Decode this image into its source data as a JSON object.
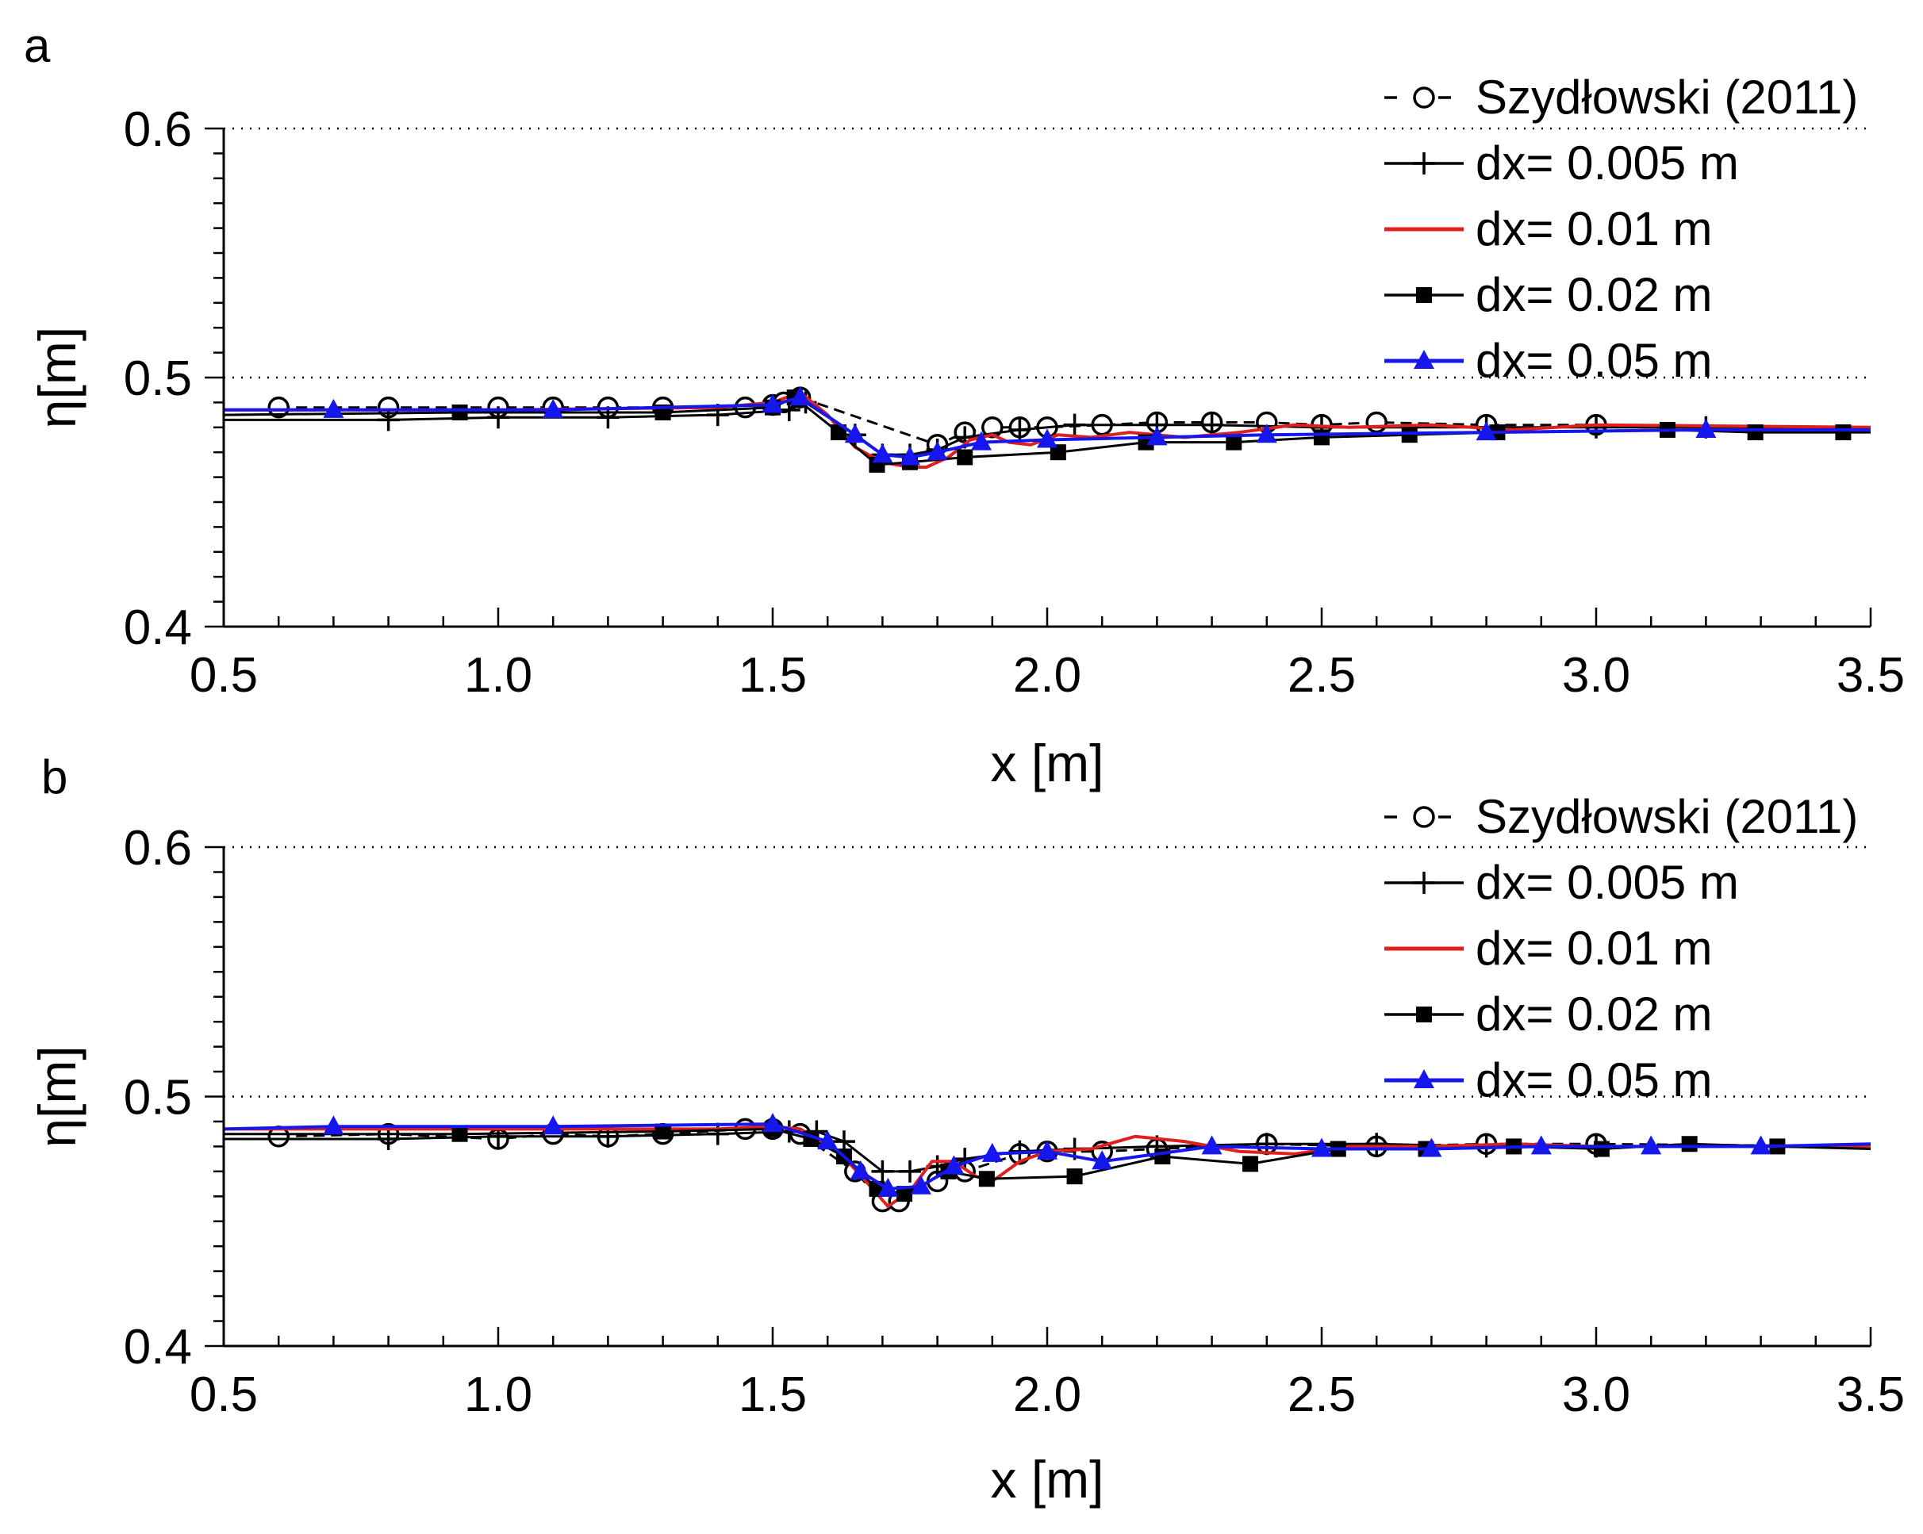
{
  "chart_data": [
    {
      "type": "line",
      "panel_label": "a",
      "xlabel": "x [m]",
      "ylabel": "η[m]",
      "xlim": [
        0.5,
        3.5
      ],
      "ylim": [
        0.4,
        0.6
      ],
      "xticks": [
        "0.5",
        "1.0",
        "1.5",
        "2.0",
        "2.5",
        "3.0",
        "3.5"
      ],
      "yticks": [
        "0.4",
        "0.5",
        "0.6"
      ],
      "ref_lines": [
        0.5,
        0.6
      ],
      "legend": [
        "Szydłowski (2011)",
        "dx= 0.005 m",
        "dx= 0.01 m",
        "dx= 0.02 m",
        "dx= 0.05 m"
      ],
      "series": [
        {
          "name": "Szydłowski (2011)",
          "color": "#000000",
          "marker": "circle",
          "dashed": true,
          "x": [
            0.6,
            0.8,
            1.0,
            1.1,
            1.2,
            1.3,
            1.45,
            1.5,
            1.52,
            1.55,
            1.8,
            1.85,
            1.9,
            1.95,
            2.0,
            2.1,
            2.2,
            2.3,
            2.4,
            2.5,
            2.6,
            2.8,
            3.0,
            3.5
          ],
          "y": [
            0.488,
            0.488,
            0.488,
            0.488,
            0.488,
            0.488,
            0.488,
            0.489,
            0.49,
            0.492,
            0.473,
            0.478,
            0.48,
            0.48,
            0.48,
            0.481,
            0.482,
            0.482,
            0.482,
            0.481,
            0.482,
            0.481,
            0.481,
            0.48
          ]
        },
        {
          "name": "dx= 0.005 m",
          "color": "#000000",
          "marker": "plus",
          "dashed": false,
          "x": [
            0.5,
            0.8,
            1.0,
            1.2,
            1.4,
            1.53,
            1.56,
            1.65,
            1.7,
            1.75,
            1.8,
            1.85,
            1.95,
            2.05,
            2.2,
            2.3,
            2.5,
            2.8,
            3.0,
            3.2,
            3.5
          ],
          "y": [
            0.483,
            0.483,
            0.484,
            0.484,
            0.485,
            0.487,
            0.49,
            0.477,
            0.469,
            0.469,
            0.471,
            0.476,
            0.479,
            0.481,
            0.481,
            0.481,
            0.48,
            0.48,
            0.48,
            0.48,
            0.48
          ]
        },
        {
          "name": "dx= 0.01 m",
          "color": "#e0201c",
          "marker": "none",
          "dashed": false,
          "x": [
            0.5,
            1.0,
            1.4,
            1.5,
            1.55,
            1.6,
            1.65,
            1.7,
            1.75,
            1.78,
            1.82,
            1.86,
            1.9,
            1.93,
            1.97,
            2.02,
            2.08,
            2.15,
            2.25,
            2.35,
            2.45,
            2.55,
            2.7,
            2.85,
            3.0,
            3.5
          ],
          "y": [
            0.487,
            0.487,
            0.488,
            0.49,
            0.494,
            0.485,
            0.472,
            0.466,
            0.464,
            0.464,
            0.468,
            0.475,
            0.477,
            0.474,
            0.473,
            0.477,
            0.476,
            0.478,
            0.476,
            0.478,
            0.481,
            0.48,
            0.481,
            0.479,
            0.481,
            0.48
          ]
        },
        {
          "name": "dx= 0.02 m",
          "color": "#000000",
          "marker": "square",
          "dashed": false,
          "x": [
            0.5,
            0.93,
            1.3,
            1.5,
            1.54,
            1.62,
            1.69,
            1.75,
            1.85,
            2.02,
            2.18,
            2.34,
            2.5,
            2.66,
            2.82,
            3.13,
            3.29,
            3.45,
            3.5
          ],
          "y": [
            0.485,
            0.486,
            0.486,
            0.488,
            0.492,
            0.478,
            0.465,
            0.466,
            0.468,
            0.47,
            0.474,
            0.474,
            0.476,
            0.477,
            0.478,
            0.479,
            0.478,
            0.478,
            0.478
          ]
        },
        {
          "name": "dx= 0.05 m",
          "color": "#1616ee",
          "marker": "triangle",
          "dashed": false,
          "x": [
            0.5,
            0.7,
            1.1,
            1.5,
            1.55,
            1.65,
            1.7,
            1.75,
            1.8,
            1.88,
            2.0,
            2.2,
            2.4,
            2.8,
            3.2,
            3.5
          ],
          "y": [
            0.487,
            0.487,
            0.487,
            0.489,
            0.492,
            0.477,
            0.469,
            0.468,
            0.47,
            0.474,
            0.475,
            0.476,
            0.477,
            0.478,
            0.479,
            0.479
          ]
        }
      ]
    },
    {
      "type": "line",
      "panel_label": "b",
      "xlabel": "x [m]",
      "ylabel": "η[m]",
      "xlim": [
        0.5,
        3.5
      ],
      "ylim": [
        0.4,
        0.6
      ],
      "xticks": [
        "0.5",
        "1.0",
        "1.5",
        "2.0",
        "2.5",
        "3.0",
        "3.5"
      ],
      "yticks": [
        "0.4",
        "0.5",
        "0.6"
      ],
      "ref_lines": [
        0.5,
        0.6
      ],
      "legend": [
        "Szydłowski (2011)",
        "dx= 0.005 m",
        "dx= 0.01 m",
        "dx= 0.02 m",
        "dx= 0.05 m"
      ],
      "series": [
        {
          "name": "Szydłowski (2011)",
          "color": "#000000",
          "marker": "circle",
          "dashed": true,
          "x": [
            0.6,
            0.8,
            1.0,
            1.1,
            1.2,
            1.3,
            1.45,
            1.5,
            1.55,
            1.65,
            1.7,
            1.73,
            1.8,
            1.85,
            1.95,
            2.0,
            2.1,
            2.2,
            2.4,
            2.6,
            2.8,
            3.0,
            3.5
          ],
          "y": [
            0.484,
            0.485,
            0.483,
            0.485,
            0.484,
            0.485,
            0.487,
            0.487,
            0.485,
            0.47,
            0.458,
            0.458,
            0.466,
            0.47,
            0.477,
            0.478,
            0.478,
            0.479,
            0.481,
            0.48,
            0.481,
            0.481,
            0.48
          ]
        },
        {
          "name": "dx= 0.005 m",
          "color": "#000000",
          "marker": "plus",
          "dashed": false,
          "x": [
            0.5,
            0.8,
            1.0,
            1.2,
            1.4,
            1.53,
            1.58,
            1.63,
            1.7,
            1.75,
            1.8,
            1.85,
            1.95,
            2.05,
            2.2,
            2.4,
            2.6,
            2.8,
            3.0,
            3.5
          ],
          "y": [
            0.483,
            0.483,
            0.484,
            0.484,
            0.485,
            0.486,
            0.486,
            0.482,
            0.47,
            0.47,
            0.472,
            0.475,
            0.478,
            0.479,
            0.48,
            0.481,
            0.481,
            0.48,
            0.48,
            0.48
          ]
        },
        {
          "name": "dx= 0.01 m",
          "color": "#e0201c",
          "marker": "none",
          "dashed": false,
          "x": [
            0.5,
            1.0,
            1.4,
            1.5,
            1.55,
            1.62,
            1.67,
            1.71,
            1.75,
            1.79,
            1.83,
            1.87,
            1.9,
            1.95,
            2.0,
            2.08,
            2.16,
            2.25,
            2.35,
            2.45,
            2.55,
            2.7,
            2.85,
            3.0,
            3.5
          ],
          "y": [
            0.487,
            0.487,
            0.487,
            0.488,
            0.487,
            0.478,
            0.466,
            0.456,
            0.462,
            0.474,
            0.474,
            0.468,
            0.466,
            0.474,
            0.478,
            0.479,
            0.484,
            0.482,
            0.478,
            0.477,
            0.48,
            0.48,
            0.481,
            0.48,
            0.48
          ]
        },
        {
          "name": "dx= 0.02 m",
          "color": "#000000",
          "marker": "square",
          "dashed": false,
          "x": [
            0.5,
            0.93,
            1.3,
            1.5,
            1.57,
            1.63,
            1.69,
            1.74,
            1.82,
            1.89,
            2.05,
            2.21,
            2.37,
            2.53,
            2.69,
            2.85,
            3.01,
            3.17,
            3.33,
            3.5
          ],
          "y": [
            0.485,
            0.485,
            0.486,
            0.487,
            0.483,
            0.476,
            0.463,
            0.461,
            0.47,
            0.467,
            0.468,
            0.476,
            0.473,
            0.479,
            0.479,
            0.48,
            0.479,
            0.481,
            0.48,
            0.479
          ]
        },
        {
          "name": "dx= 0.05 m",
          "color": "#1616ee",
          "marker": "triangle",
          "dashed": false,
          "x": [
            0.5,
            0.7,
            1.1,
            1.5,
            1.6,
            1.66,
            1.71,
            1.77,
            1.83,
            1.9,
            2.0,
            2.1,
            2.3,
            2.5,
            2.7,
            2.9,
            3.1,
            3.3,
            3.5
          ],
          "y": [
            0.487,
            0.488,
            0.488,
            0.489,
            0.482,
            0.47,
            0.463,
            0.464,
            0.472,
            0.477,
            0.478,
            0.474,
            0.48,
            0.479,
            0.479,
            0.48,
            0.48,
            0.48,
            0.481
          ]
        }
      ]
    }
  ]
}
